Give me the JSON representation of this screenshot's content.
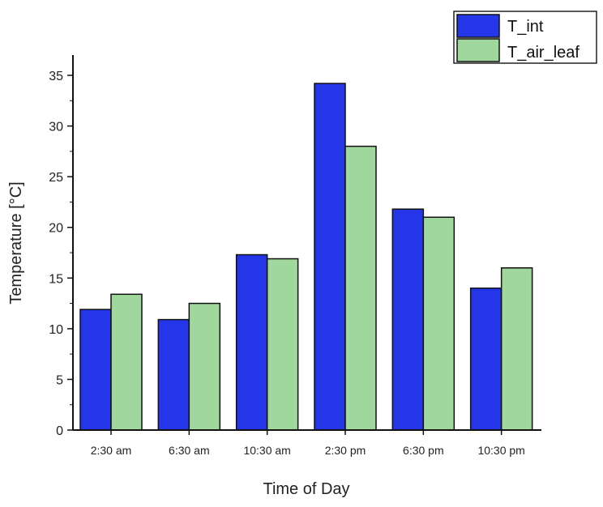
{
  "chart_data": {
    "type": "bar",
    "title": "",
    "xlabel": "Time of Day",
    "ylabel": "Temperature [°C]",
    "categories": [
      "2:30 am",
      "6:30 am",
      "10:30 am",
      "2:30 pm",
      "6:30 pm",
      "10:30 pm"
    ],
    "series": [
      {
        "name": "T_int",
        "values": [
          11.9,
          10.9,
          17.3,
          34.2,
          21.8,
          14.0
        ]
      },
      {
        "name": "T_air_leaf",
        "values": [
          13.4,
          12.5,
          16.9,
          28.0,
          21.0,
          16.0
        ]
      }
    ],
    "ylim": [
      0,
      37
    ],
    "yticks": [
      0,
      5,
      10,
      15,
      20,
      25,
      30,
      35
    ],
    "grid": false,
    "legend_position": "top-right",
    "colors": {
      "T_int": "#2436e8",
      "T_air_leaf": "#9fd79d"
    }
  }
}
